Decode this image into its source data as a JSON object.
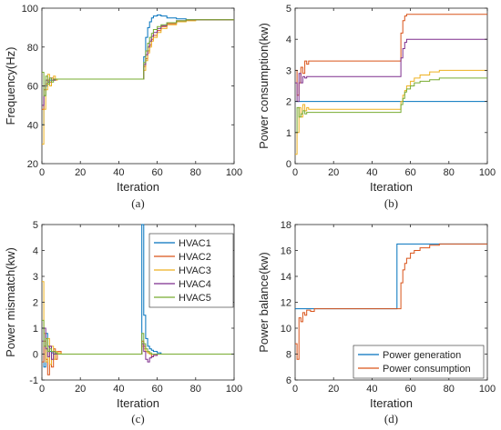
{
  "chart_data": [
    {
      "type": "line",
      "panel": "a",
      "caption": "(a)",
      "xlabel": "Iteration",
      "ylabel": "Frequency(Hz)",
      "xlim": [
        0,
        100
      ],
      "ylim": [
        20,
        100
      ],
      "xticks": [
        "0",
        "20",
        "40",
        "60",
        "80",
        "100"
      ],
      "yticks": [
        "20",
        "40",
        "60",
        "80",
        "100"
      ],
      "x": [
        0,
        1,
        2,
        3,
        4,
        5,
        6,
        7,
        8,
        10,
        12,
        15,
        20,
        30,
        40,
        52,
        53,
        54,
        55,
        56,
        57,
        58,
        60,
        62,
        65,
        70,
        75,
        80,
        90,
        100
      ],
      "series": [
        {
          "color": "#0072BD",
          "values": [
            40,
            55,
            60,
            62,
            63,
            63,
            63,
            63.5,
            63.5,
            63.5,
            63.5,
            63.5,
            63.5,
            63.5,
            63.5,
            63.5,
            75,
            85,
            90,
            93,
            95,
            96,
            96.5,
            96,
            95,
            94.5,
            94,
            94,
            94,
            94
          ]
        },
        {
          "color": "#D95319",
          "values": [
            48,
            58,
            61,
            63,
            62,
            64,
            63,
            63.5,
            63.5,
            63.5,
            63.5,
            63.5,
            63.5,
            63.5,
            63.5,
            63.5,
            70,
            74,
            78,
            81,
            84,
            86,
            88.5,
            90.5,
            92,
            93.5,
            93.8,
            94,
            94,
            94
          ]
        },
        {
          "color": "#EDB120",
          "values": [
            30,
            48,
            58,
            66,
            60,
            63,
            65,
            63,
            63.5,
            63.5,
            63.5,
            63.5,
            63.5,
            63.5,
            63.5,
            63.5,
            68,
            73,
            77,
            80,
            83,
            85,
            87.5,
            89.5,
            91.5,
            93,
            93.5,
            94,
            94,
            94
          ]
        },
        {
          "color": "#7E2F8E",
          "values": [
            50,
            60,
            63,
            62,
            64,
            63,
            63,
            63.5,
            63.5,
            63.5,
            63.5,
            63.5,
            63.5,
            63.5,
            63.5,
            63.5,
            71,
            76,
            80,
            83,
            85.5,
            87.5,
            89.5,
            91,
            92.5,
            93.5,
            94,
            94,
            94,
            94
          ]
        },
        {
          "color": "#77AC30",
          "values": [
            67,
            55,
            65,
            61,
            64,
            62,
            63.5,
            63.5,
            63.5,
            63.5,
            63.5,
            63.5,
            63.5,
            63.5,
            63.5,
            63.5,
            72,
            78,
            82,
            85,
            87,
            89,
            90.5,
            91.5,
            92.5,
            93.5,
            94,
            94,
            94,
            94
          ]
        }
      ]
    },
    {
      "type": "line",
      "panel": "b",
      "caption": "(b)",
      "xlabel": "Iteration",
      "ylabel": "Power consumption(kw)",
      "xlim": [
        0,
        100
      ],
      "ylim": [
        0,
        5
      ],
      "xticks": [
        "0",
        "20",
        "40",
        "60",
        "80",
        "100"
      ],
      "yticks": [
        "0",
        "1",
        "2",
        "3",
        "4",
        "5"
      ],
      "x": [
        0,
        1,
        2,
        3,
        4,
        5,
        6,
        7,
        8,
        10,
        12,
        15,
        20,
        30,
        40,
        54,
        55,
        56,
        57,
        58,
        60,
        62,
        65,
        70,
        75,
        80,
        90,
        100
      ],
      "series": [
        {
          "color": "#0072BD",
          "values": [
            2.0,
            2.0,
            2.0,
            2.0,
            2.0,
            2.0,
            2.0,
            2.0,
            2.0,
            2.0,
            2.0,
            2.0,
            2.0,
            2.0,
            2.0,
            2.0,
            2.0,
            2.0,
            2.0,
            2.0,
            2.0,
            2.0,
            2.0,
            2.0,
            2.0,
            2.0,
            2.0,
            2.0
          ]
        },
        {
          "color": "#D95319",
          "values": [
            3.0,
            2.2,
            2.6,
            3.1,
            2.9,
            3.3,
            3.2,
            3.3,
            3.3,
            3.3,
            3.3,
            3.3,
            3.3,
            3.3,
            3.3,
            3.3,
            4.2,
            4.6,
            4.75,
            4.8,
            4.8,
            4.8,
            4.8,
            4.8,
            4.8,
            4.8,
            4.8,
            4.8
          ]
        },
        {
          "color": "#EDB120",
          "values": [
            0.3,
            1.0,
            1.8,
            1.5,
            1.9,
            1.7,
            1.8,
            1.75,
            1.75,
            1.75,
            1.75,
            1.75,
            1.75,
            1.75,
            1.75,
            1.75,
            2.0,
            2.2,
            2.35,
            2.5,
            2.65,
            2.75,
            2.85,
            2.95,
            3.0,
            3.0,
            3.0,
            3.0
          ]
        },
        {
          "color": "#7E2F8E",
          "values": [
            2.6,
            2.0,
            2.9,
            2.6,
            2.8,
            2.75,
            2.8,
            2.8,
            2.8,
            2.8,
            2.8,
            2.8,
            2.8,
            2.8,
            2.8,
            2.8,
            3.4,
            3.7,
            3.9,
            4.0,
            4.0,
            4.0,
            4.0,
            4.0,
            4.0,
            4.0,
            4.0,
            4.0
          ]
        },
        {
          "color": "#77AC30",
          "values": [
            1.0,
            1.8,
            1.5,
            1.6,
            1.7,
            1.6,
            1.65,
            1.65,
            1.65,
            1.65,
            1.65,
            1.65,
            1.65,
            1.65,
            1.65,
            1.65,
            1.9,
            2.1,
            2.3,
            2.4,
            2.5,
            2.6,
            2.65,
            2.7,
            2.75,
            2.75,
            2.75,
            2.75
          ]
        }
      ]
    },
    {
      "type": "line",
      "panel": "c",
      "caption": "(c)",
      "xlabel": "Iteration",
      "ylabel": "Power mismatch(kw)",
      "xlim": [
        0,
        100
      ],
      "ylim": [
        -1,
        5
      ],
      "xticks": [
        "0",
        "20",
        "40",
        "60",
        "80",
        "100"
      ],
      "yticks": [
        "-1",
        "0",
        "1",
        "2",
        "3",
        "4",
        "5"
      ],
      "legend": {
        "position": "top-right",
        "entries": [
          "HVAC1",
          "HVAC2",
          "HVAC3",
          "HVAC4",
          "HVAC5"
        ]
      },
      "x": [
        0,
        1,
        2,
        3,
        4,
        5,
        6,
        7,
        8,
        10,
        12,
        15,
        20,
        30,
        40,
        51,
        52,
        53,
        54,
        55,
        56,
        57,
        58,
        60,
        62,
        65,
        70,
        80,
        90,
        100
      ],
      "series": [
        {
          "name": "HVAC1",
          "color": "#0072BD",
          "values": [
            1.0,
            -0.5,
            0.8,
            0.3,
            0.1,
            0.05,
            0,
            0,
            0,
            0,
            0,
            0,
            0,
            0,
            0,
            0,
            5.0,
            1.5,
            0.6,
            0.3,
            0.2,
            0.15,
            0.1,
            0.05,
            0,
            0,
            0,
            0,
            0,
            0
          ]
        },
        {
          "name": "HVAC2",
          "color": "#D95319",
          "values": [
            -0.3,
            0.5,
            -0.2,
            -0.8,
            0.3,
            -0.5,
            0.2,
            -0.2,
            0.1,
            0,
            0,
            0,
            0,
            0,
            0,
            0,
            0.5,
            0.3,
            0.1,
            0.05,
            0,
            -0.1,
            -0.05,
            0,
            0,
            0,
            0,
            0,
            0,
            0
          ]
        },
        {
          "name": "HVAC3",
          "color": "#EDB120",
          "values": [
            2.8,
            0.8,
            -0.3,
            0.6,
            -0.4,
            0.3,
            -0.2,
            0.1,
            0.05,
            0,
            0,
            0,
            0,
            0,
            0,
            0,
            0.3,
            0.2,
            0.1,
            0.05,
            0,
            0,
            0,
            0,
            0,
            0,
            0,
            0,
            0,
            0
          ]
        },
        {
          "name": "HVAC4",
          "color": "#7E2F8E",
          "values": [
            0.5,
            1.0,
            0.2,
            -0.1,
            0.3,
            -0.2,
            0.1,
            0,
            0,
            0,
            0,
            0,
            0,
            0,
            0,
            0,
            0.4,
            0.1,
            -0.2,
            -0.3,
            -0.15,
            -0.1,
            -0.05,
            0,
            0,
            0,
            0,
            0,
            0,
            0
          ]
        },
        {
          "name": "HVAC5",
          "color": "#77AC30",
          "values": [
            1.3,
            0.3,
            0.6,
            0.1,
            0.2,
            0.1,
            0.1,
            0.05,
            0,
            0,
            0,
            0,
            0,
            0,
            0,
            0,
            0.8,
            0.4,
            0.2,
            0.1,
            0.05,
            0,
            0,
            0,
            0,
            0,
            0,
            0,
            0,
            0
          ]
        }
      ]
    },
    {
      "type": "line",
      "panel": "d",
      "caption": "(d)",
      "xlabel": "Iteration",
      "ylabel": "Power balance(kw)",
      "xlim": [
        0,
        100
      ],
      "ylim": [
        6,
        18
      ],
      "xticks": [
        "0",
        "20",
        "40",
        "60",
        "80",
        "100"
      ],
      "yticks": [
        "6",
        "8",
        "10",
        "12",
        "14",
        "16",
        "18"
      ],
      "legend": {
        "position": "bottom-right",
        "entries": [
          "Power generation",
          "Power consumption"
        ]
      },
      "x": [
        0,
        1,
        2,
        3,
        4,
        5,
        6,
        8,
        10,
        15,
        20,
        30,
        40,
        52,
        53,
        54,
        55,
        56,
        57,
        58,
        60,
        62,
        65,
        70,
        75,
        80,
        90,
        100
      ],
      "series": [
        {
          "name": "Power generation",
          "color": "#0072BD",
          "values": [
            11.5,
            11.5,
            11.5,
            11.5,
            11.5,
            11.5,
            11.5,
            11.5,
            11.5,
            11.5,
            11.5,
            11.5,
            11.5,
            11.5,
            16.5,
            16.5,
            16.5,
            16.5,
            16.5,
            16.5,
            16.5,
            16.5,
            16.5,
            16.5,
            16.5,
            16.5,
            16.5,
            16.5
          ]
        },
        {
          "name": "Power consumption",
          "color": "#D95319",
          "values": [
            8.8,
            7.6,
            10.8,
            10.5,
            11.2,
            11.0,
            11.4,
            11.3,
            11.5,
            11.5,
            11.5,
            11.5,
            11.5,
            11.5,
            11.5,
            11.5,
            13.5,
            14.5,
            15.0,
            15.4,
            15.8,
            16.0,
            16.2,
            16.4,
            16.5,
            16.5,
            16.5,
            16.5
          ]
        }
      ]
    }
  ]
}
